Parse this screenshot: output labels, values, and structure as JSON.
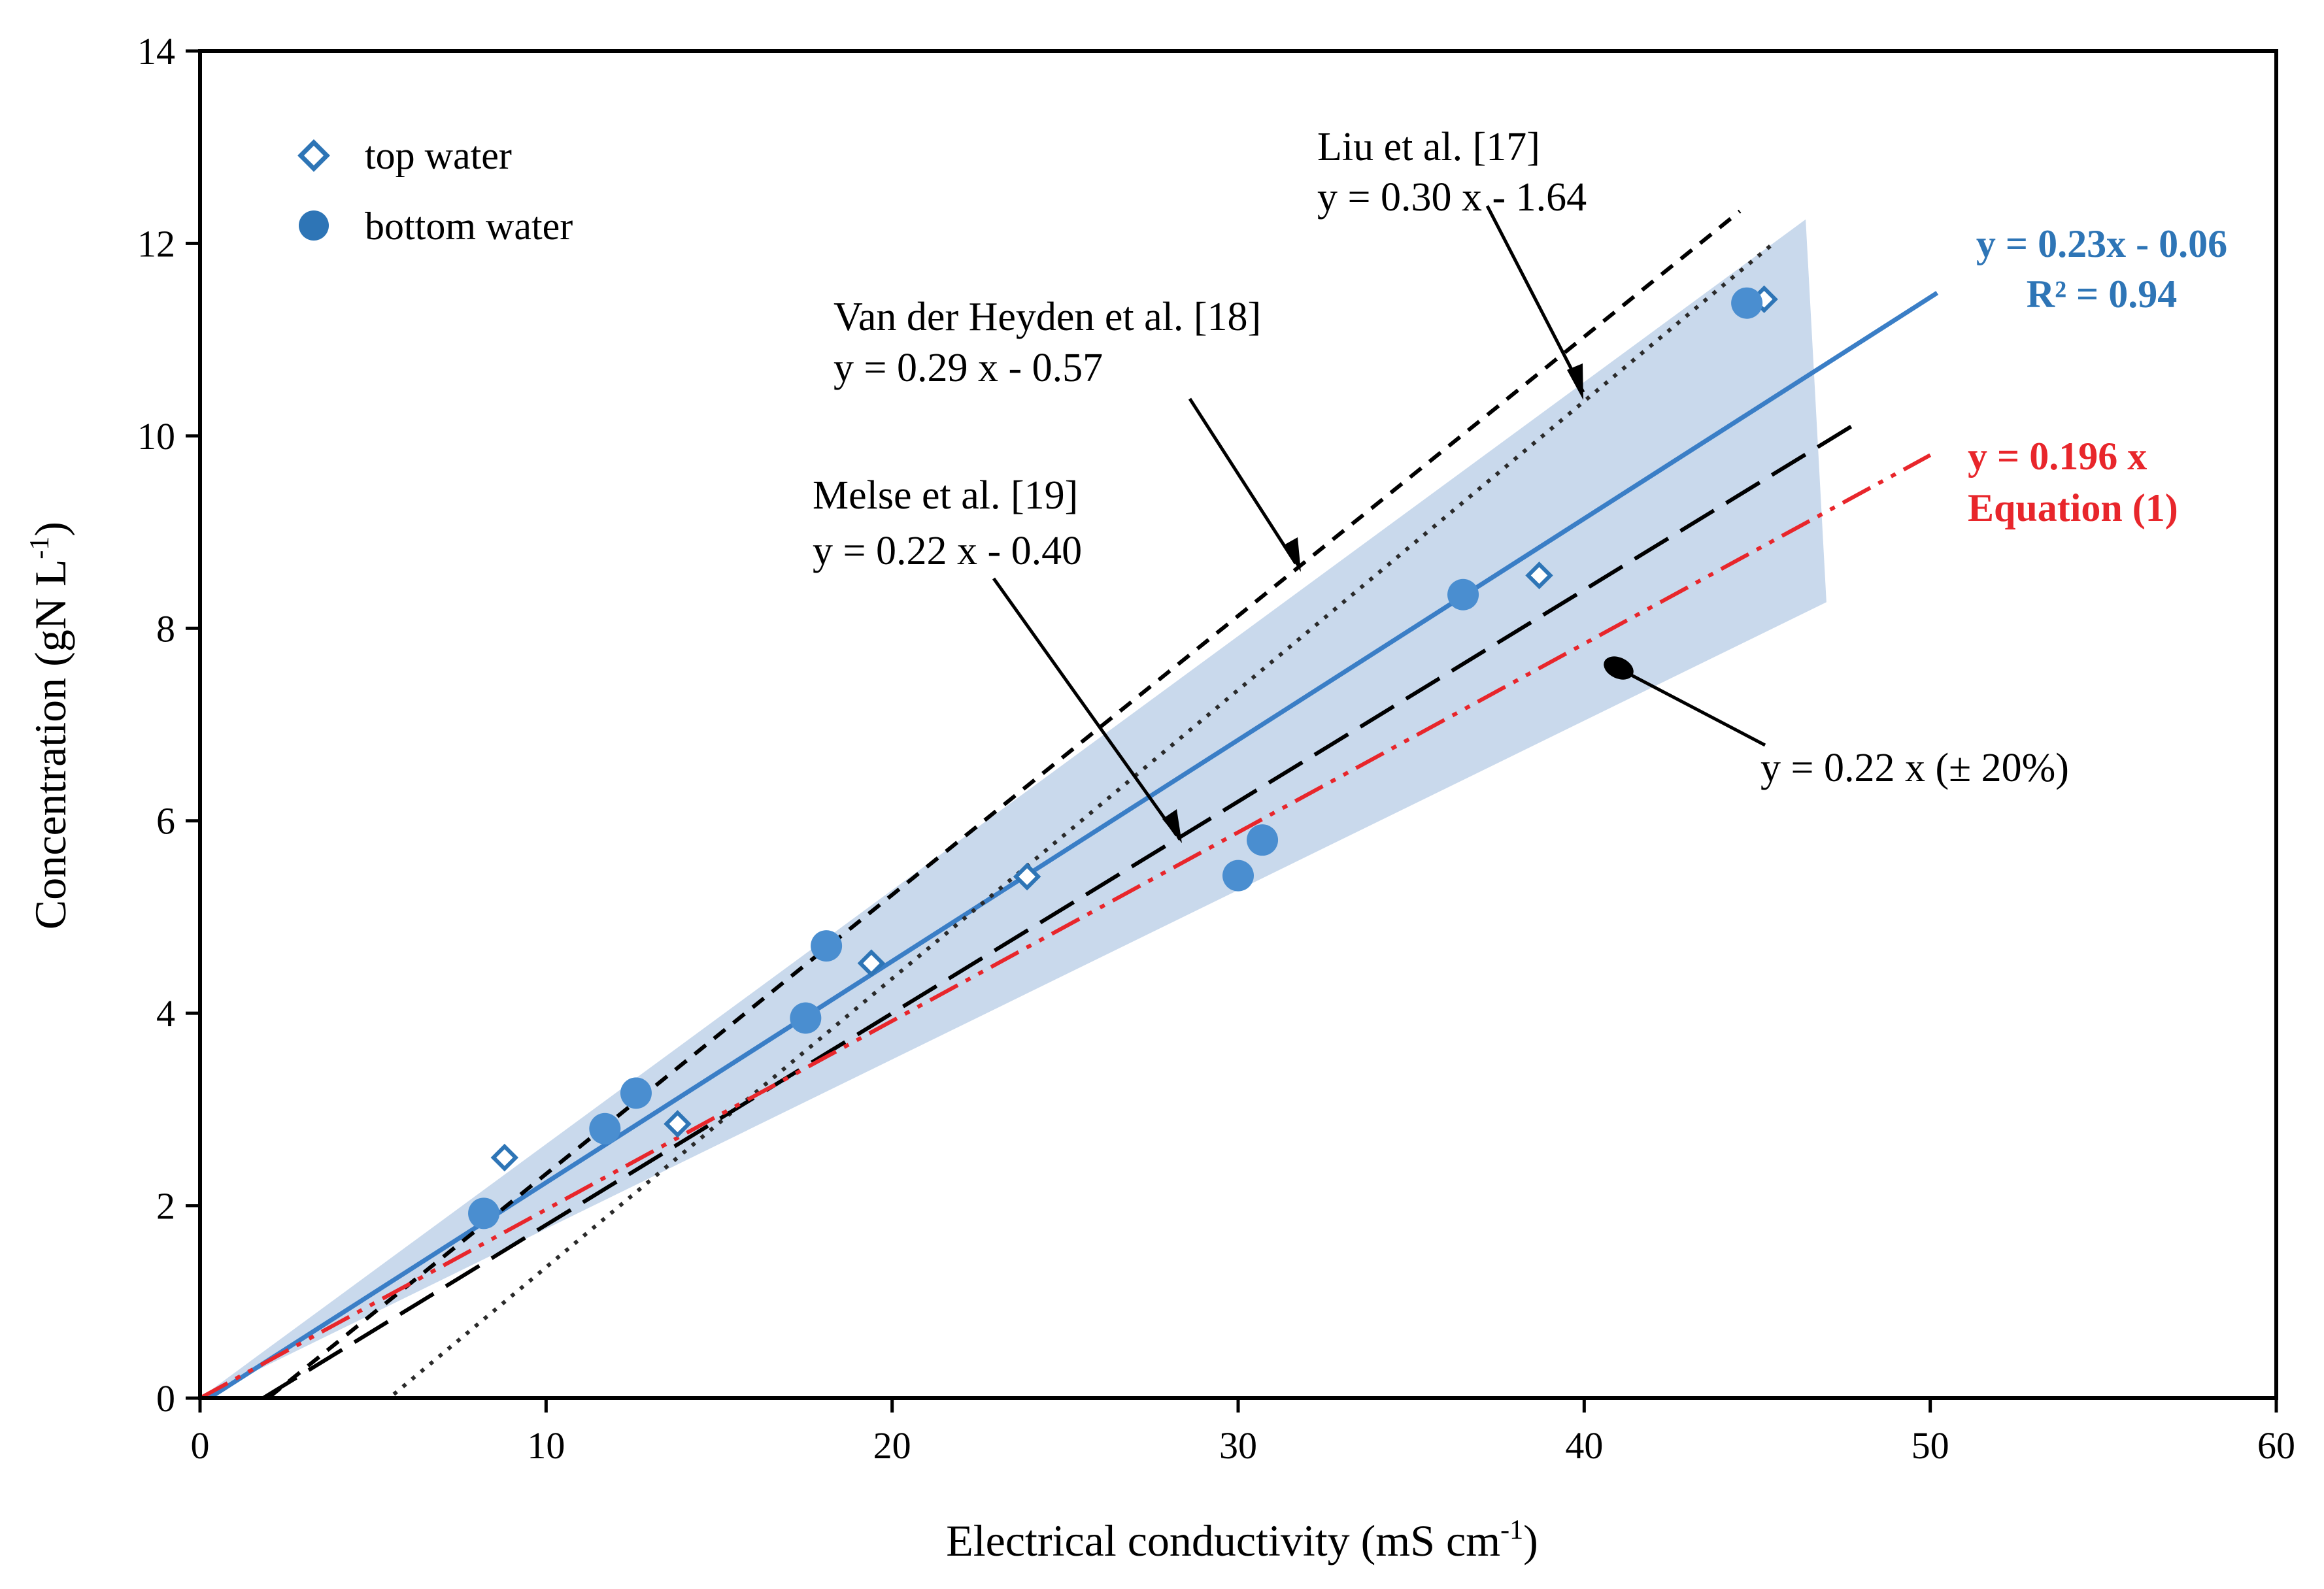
{
  "chart_data": {
    "type": "scatter",
    "xlabel": "Electrical conductivity (mS cm",
    "xlabel_sup": "-1",
    "xlabel_end": ")",
    "ylabel": "Concentration (gN L",
    "ylabel_sup": "-1",
    "ylabel_end": ")",
    "xlim": [
      0,
      60
    ],
    "ylim": [
      0,
      14
    ],
    "xticks": [
      0,
      10,
      20,
      30,
      40,
      50,
      60
    ],
    "yticks": [
      0,
      2,
      4,
      6,
      8,
      10,
      12,
      14
    ],
    "grid": false,
    "legend_position": "top-left",
    "series": [
      {
        "name": "top water",
        "marker": "open-diamond",
        "color": "#2E75B6",
        "points": [
          [
            8.8,
            2.5
          ],
          [
            13.8,
            2.85
          ],
          [
            19.4,
            4.52
          ],
          [
            23.9,
            5.42
          ],
          [
            38.7,
            8.55
          ],
          [
            45.2,
            11.42
          ]
        ]
      },
      {
        "name": "bottom water",
        "marker": "filled-circle",
        "color": "#2E75B6",
        "points": [
          [
            8.2,
            1.92
          ],
          [
            11.7,
            2.8
          ],
          [
            12.6,
            3.17
          ],
          [
            17.5,
            3.95
          ],
          [
            18.1,
            4.7
          ],
          [
            30.0,
            5.43
          ],
          [
            30.7,
            5.8
          ],
          [
            36.5,
            8.35
          ],
          [
            44.7,
            11.38
          ]
        ]
      }
    ],
    "fits": [
      {
        "name": "fit",
        "slope": 0.23,
        "intercept": -0.06,
        "x_range": [
          0,
          50.2
        ],
        "style": "solid",
        "color": "#3A7EC6"
      },
      {
        "name": "Liu et al. [17]",
        "slope": 0.3,
        "intercept": -1.64,
        "x_range": [
          5.6,
          45.5
        ],
        "style": "dotted",
        "color": "#2A2A2A"
      },
      {
        "name": "Van der Heyden et al. [18]",
        "slope": 0.29,
        "intercept": -0.57,
        "x_range": [
          2.0,
          44.5
        ],
        "style": "short-dash",
        "color": "#000000"
      },
      {
        "name": "Melse et al. [19]",
        "slope": 0.22,
        "intercept": -0.4,
        "x_range": [
          1.8,
          47.8
        ],
        "style": "long-dash",
        "color": "#000000"
      },
      {
        "name": "Equation (1)",
        "slope": 0.196,
        "intercept": 0.0,
        "x_range": [
          0,
          50.0
        ],
        "style": "dash-dot-dot",
        "color": "#E8262B"
      }
    ],
    "band": {
      "name": "y = 0.22 x (± 20%)",
      "slope": 0.22,
      "band_fraction": 0.2,
      "x_range": [
        0,
        47
      ]
    },
    "annotations": {
      "liu_title": "Liu et al. [17]",
      "liu_eq": "y = 0.30 x - 1.64",
      "vdh_title": "Van der Heyden et al. [18]",
      "vdh_eq": "y = 0.29 x - 0.57",
      "melse_title": "Melse et al. [19]",
      "melse_eq": "y = 0.22 x - 0.40",
      "band_label": "y = 0.22 x (± 20%)",
      "fit_eq": "y = 0.23x - 0.06",
      "fit_r2": "R² = 0.94",
      "eq1_eq": "y = 0.196 x",
      "eq1_label": "Equation (1)"
    },
    "colors": {
      "band": "#C9D9EC",
      "fit_blue": "#2E75B6",
      "eq1_red": "#E8262B",
      "marker_fill": "#4A8ED0"
    }
  }
}
